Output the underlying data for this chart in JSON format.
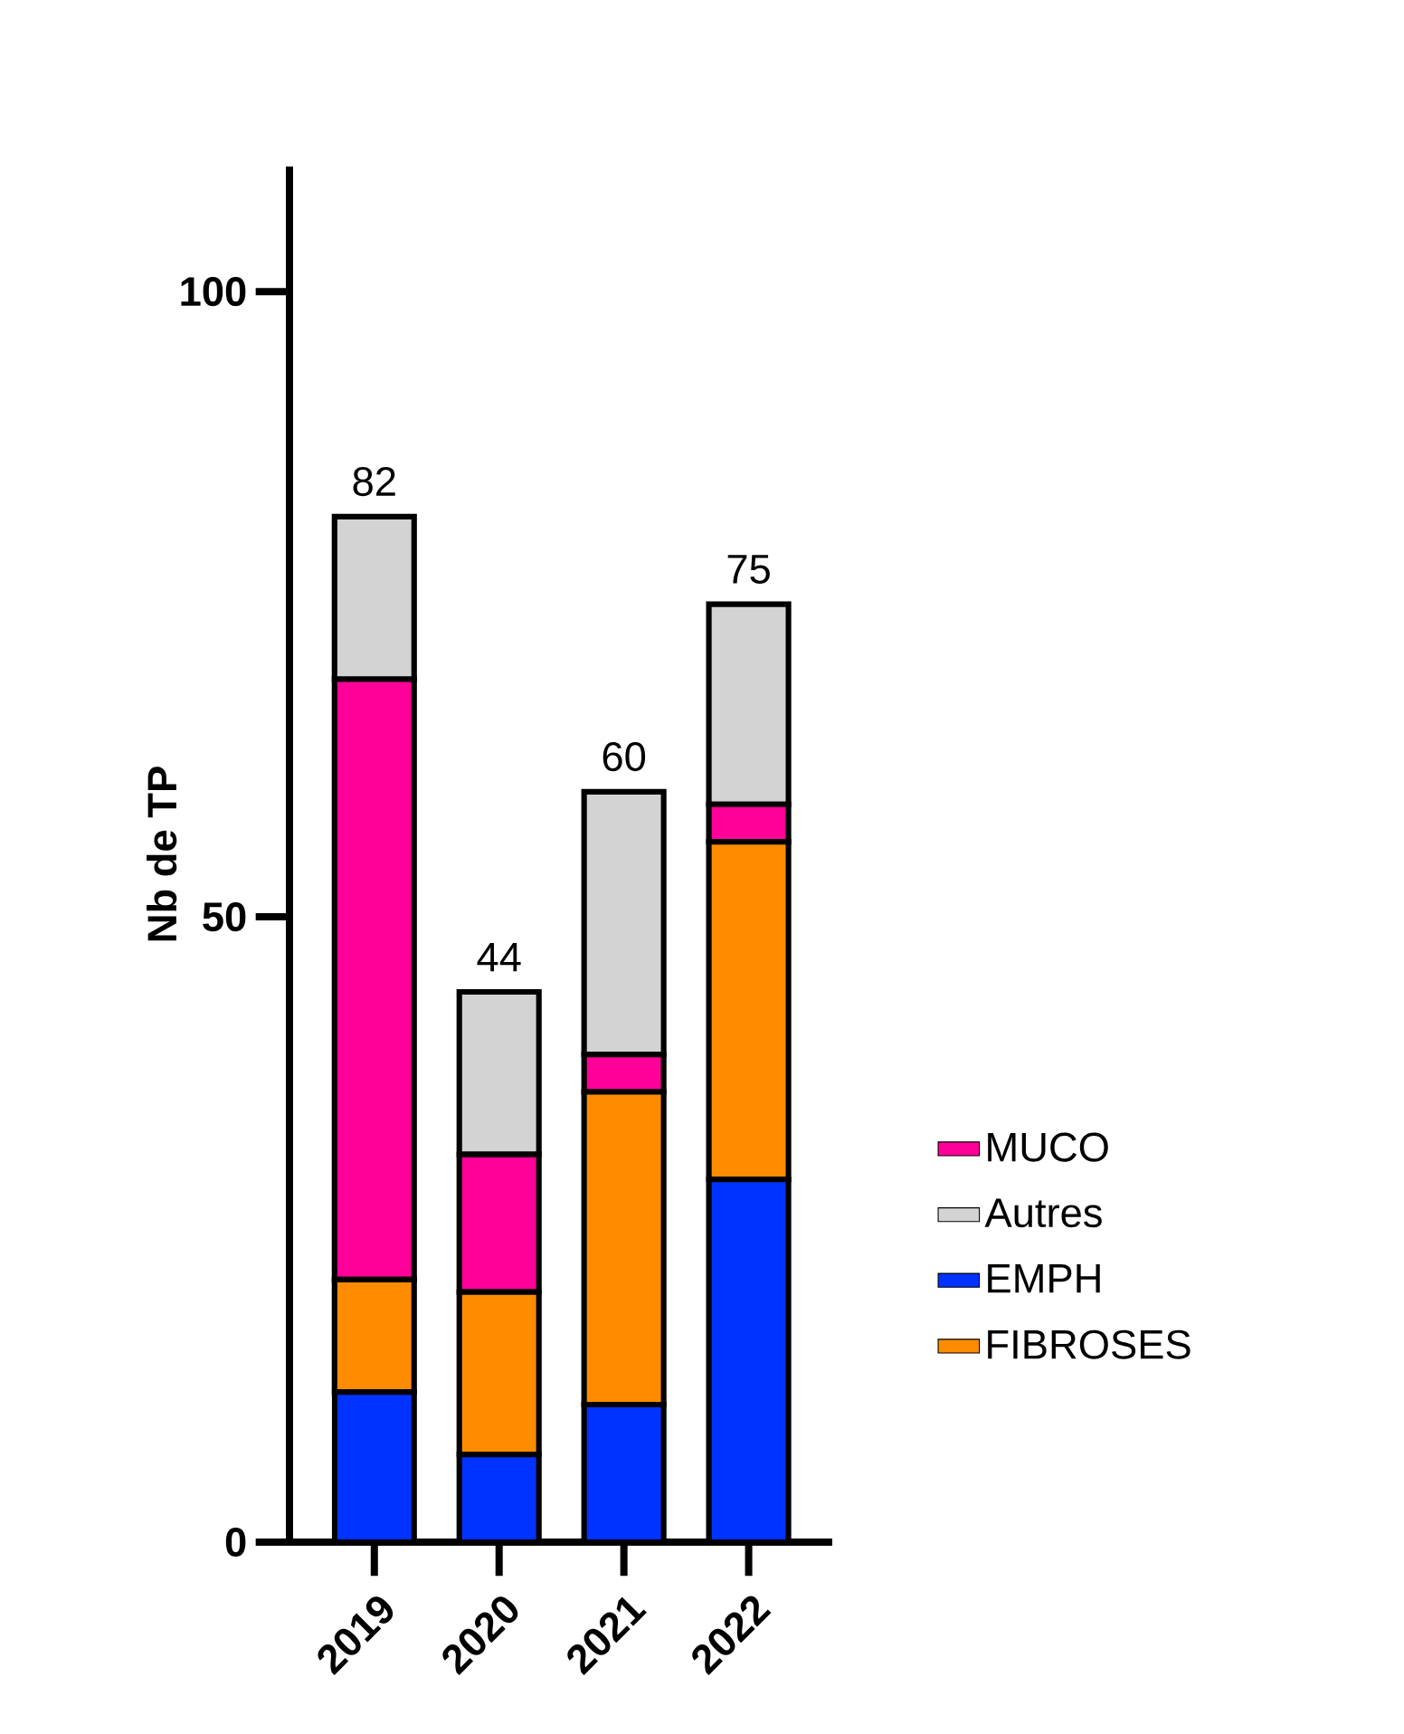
{
  "chart_data": {
    "type": "bar",
    "stacked": true,
    "ylabel": "Nb de TP",
    "categories": [
      "2019",
      "2020",
      "2021",
      "2022"
    ],
    "series": [
      {
        "name": "EMPH",
        "color": "#0033ff",
        "values": [
          12,
          7,
          11,
          29
        ]
      },
      {
        "name": "FIBROSES",
        "color": "#ff8c00",
        "values": [
          9,
          13,
          25,
          27
        ]
      },
      {
        "name": "MUCO",
        "color": "#ff0099",
        "values": [
          48,
          11,
          3,
          3
        ]
      },
      {
        "name": "Autres",
        "color": "#d3d3d3",
        "values": [
          13,
          13,
          21,
          16
        ]
      }
    ],
    "totals": [
      "82",
      "44",
      "60",
      "75"
    ],
    "ylim": [
      0,
      110
    ],
    "yticks": [
      0,
      50,
      100
    ],
    "grid": false,
    "legend": "right"
  }
}
